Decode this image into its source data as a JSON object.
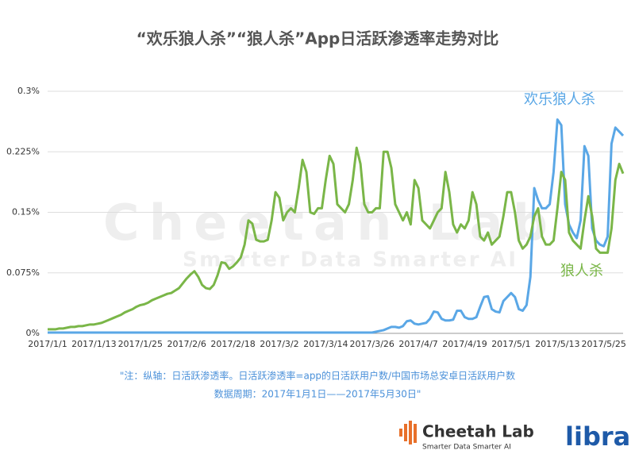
{
  "chart_data": {
    "type": "line",
    "title": "“欢乐狼人杀”“狼人杀”App日活跃渗透率走势对比",
    "categories": [
      "2017/1/1",
      null,
      null,
      null,
      null,
      null,
      null,
      null,
      null,
      null,
      null,
      null,
      "2017/1/13",
      null,
      null,
      null,
      null,
      null,
      null,
      null,
      null,
      null,
      null,
      null,
      "2017/1/25",
      null,
      null,
      null,
      null,
      null,
      null,
      null,
      null,
      null,
      null,
      null,
      "2017/2/6",
      null,
      null,
      null,
      null,
      null,
      null,
      null,
      null,
      null,
      null,
      null,
      "2017/2/18",
      null,
      null,
      null,
      null,
      null,
      null,
      null,
      null,
      null,
      null,
      null,
      "2017/3/2",
      null,
      null,
      null,
      null,
      null,
      null,
      null,
      null,
      null,
      null,
      null,
      "2017/3/14",
      null,
      null,
      null,
      null,
      null,
      null,
      null,
      null,
      null,
      null,
      null,
      "2017/3/26",
      null,
      null,
      null,
      null,
      null,
      null,
      null,
      null,
      null,
      null,
      null,
      "2017/4/7",
      null,
      null,
      null,
      null,
      null,
      null,
      null,
      null,
      null,
      null,
      null,
      "2017/4/19",
      null,
      null,
      null,
      null,
      null,
      null,
      null,
      null,
      null,
      null,
      null,
      "2017/5/1",
      null,
      null,
      null,
      null,
      null,
      null,
      null,
      null,
      null,
      null,
      null,
      "2017/5/13",
      null,
      null,
      null,
      null,
      null,
      null,
      null,
      null,
      null,
      null,
      null,
      "2017/5/25",
      null,
      null,
      null,
      null,
      null
    ],
    "series": [
      {
        "name": "欢乐狼人杀",
        "color": "#5aa7e6",
        "values": [
          0.001,
          0.001,
          0.001,
          0.001,
          0.001,
          0.001,
          0.001,
          0.001,
          0.001,
          0.001,
          0.001,
          0.001,
          0.001,
          0.001,
          0.001,
          0.001,
          0.001,
          0.001,
          0.001,
          0.001,
          0.001,
          0.001,
          0.001,
          0.001,
          0.001,
          0.001,
          0.001,
          0.001,
          0.001,
          0.001,
          0.001,
          0.001,
          0.001,
          0.001,
          0.001,
          0.001,
          0.001,
          0.001,
          0.001,
          0.001,
          0.001,
          0.001,
          0.001,
          0.001,
          0.001,
          0.001,
          0.001,
          0.001,
          0.001,
          0.001,
          0.001,
          0.001,
          0.001,
          0.001,
          0.001,
          0.001,
          0.001,
          0.001,
          0.001,
          0.001,
          0.001,
          0.001,
          0.001,
          0.001,
          0.001,
          0.001,
          0.001,
          0.001,
          0.001,
          0.001,
          0.001,
          0.001,
          0.001,
          0.001,
          0.001,
          0.001,
          0.001,
          0.001,
          0.001,
          0.001,
          0.001,
          0.001,
          0.001,
          0.001,
          0.001,
          0.002,
          0.003,
          0.004,
          0.006,
          0.008,
          0.008,
          0.007,
          0.009,
          0.015,
          0.016,
          0.012,
          0.011,
          0.012,
          0.013,
          0.018,
          0.027,
          0.026,
          0.018,
          0.016,
          0.016,
          0.017,
          0.028,
          0.028,
          0.02,
          0.018,
          0.018,
          0.02,
          0.033,
          0.045,
          0.046,
          0.03,
          0.027,
          0.026,
          0.04,
          0.045,
          0.05,
          0.045,
          0.03,
          0.028,
          0.035,
          0.07,
          0.18,
          0.165,
          0.155,
          0.155,
          0.16,
          0.2,
          0.265,
          0.258,
          0.16,
          0.135,
          0.125,
          0.118,
          0.14,
          0.232,
          0.22,
          0.13,
          0.115,
          0.11,
          0.108,
          0.12,
          0.235,
          0.255,
          0.25,
          0.245
        ]
      },
      {
        "name": "狼人杀",
        "color": "#7ab648",
        "values": [
          0.005,
          0.005,
          0.005,
          0.006,
          0.006,
          0.007,
          0.008,
          0.008,
          0.009,
          0.009,
          0.01,
          0.011,
          0.011,
          0.012,
          0.013,
          0.015,
          0.017,
          0.019,
          0.021,
          0.023,
          0.026,
          0.028,
          0.03,
          0.033,
          0.035,
          0.036,
          0.038,
          0.041,
          0.043,
          0.045,
          0.047,
          0.049,
          0.05,
          0.053,
          0.056,
          0.062,
          0.068,
          0.073,
          0.077,
          0.07,
          0.06,
          0.056,
          0.055,
          0.06,
          0.072,
          0.088,
          0.087,
          0.08,
          0.083,
          0.088,
          0.094,
          0.11,
          0.14,
          0.136,
          0.116,
          0.114,
          0.114,
          0.116,
          0.14,
          0.175,
          0.168,
          0.14,
          0.15,
          0.155,
          0.15,
          0.18,
          0.215,
          0.2,
          0.15,
          0.148,
          0.155,
          0.155,
          0.19,
          0.22,
          0.21,
          0.16,
          0.155,
          0.15,
          0.16,
          0.19,
          0.23,
          0.21,
          0.16,
          0.15,
          0.15,
          0.155,
          0.155,
          0.225,
          0.225,
          0.205,
          0.16,
          0.15,
          0.14,
          0.15,
          0.135,
          0.19,
          0.18,
          0.14,
          0.135,
          0.13,
          0.14,
          0.15,
          0.155,
          0.2,
          0.175,
          0.135,
          0.125,
          0.135,
          0.13,
          0.14,
          0.175,
          0.16,
          0.12,
          0.115,
          0.125,
          0.11,
          0.115,
          0.12,
          0.145,
          0.175,
          0.175,
          0.15,
          0.115,
          0.105,
          0.11,
          0.12,
          0.145,
          0.155,
          0.12,
          0.11,
          0.11,
          0.115,
          0.155,
          0.2,
          0.19,
          0.125,
          0.115,
          0.11,
          0.105,
          0.14,
          0.17,
          0.145,
          0.105,
          0.1,
          0.1,
          0.1,
          0.13,
          0.19,
          0.21,
          0.198
        ]
      }
    ],
    "ylim": [
      0,
      0.3
    ],
    "yticks": [
      {
        "value": 0,
        "label": "0%"
      },
      {
        "value": 0.075,
        "label": "0.075%"
      },
      {
        "value": 0.15,
        "label": "0.15%"
      },
      {
        "value": 0.225,
        "label": "0.225%"
      },
      {
        "value": 0.3,
        "label": "0.3%"
      }
    ],
    "grid": true,
    "notes": [
      "\"注：纵轴：日活跃渗透率。日活跃渗透率=app的日活跃用户数/中国市场总安卓日活跃用户数",
      "数据周期：2017年1月1日——2017年5月30日\""
    ]
  },
  "watermark": {
    "name": "Cheetah Lab",
    "slogan": "Smarter Data Smarter AI"
  },
  "logos": {
    "brand": "Cheetah Lab",
    "slogan": "Smarter Data Smarter AI",
    "partner": "libra"
  }
}
